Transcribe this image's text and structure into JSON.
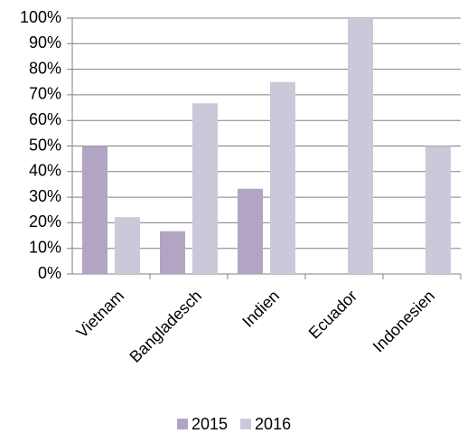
{
  "chart_data": {
    "type": "bar",
    "categories": [
      "Vietnam",
      "Bangladesch",
      "Indien",
      "Ecuador",
      "Indonesien"
    ],
    "series": [
      {
        "name": "2015",
        "color": "#b1a5c3",
        "values": [
          50,
          16.7,
          33.3,
          0,
          0
        ]
      },
      {
        "name": "2016",
        "color": "#cdc7da",
        "values": [
          22.2,
          66.7,
          75,
          100,
          50
        ]
      }
    ],
    "ylim": [
      0,
      100
    ],
    "yticks": [
      {
        "value": 0,
        "label": "0%"
      },
      {
        "value": 10,
        "label": "10%"
      },
      {
        "value": 20,
        "label": "20%"
      },
      {
        "value": 30,
        "label": "30%"
      },
      {
        "value": 40,
        "label": "40%"
      },
      {
        "value": 50,
        "label": "50%"
      },
      {
        "value": 60,
        "label": "60%"
      },
      {
        "value": 70,
        "label": "70%"
      },
      {
        "value": 80,
        "label": "80%"
      },
      {
        "value": 90,
        "label": "90%"
      },
      {
        "value": 100,
        "label": "100%"
      }
    ],
    "grid": true,
    "legend": "bottom"
  }
}
